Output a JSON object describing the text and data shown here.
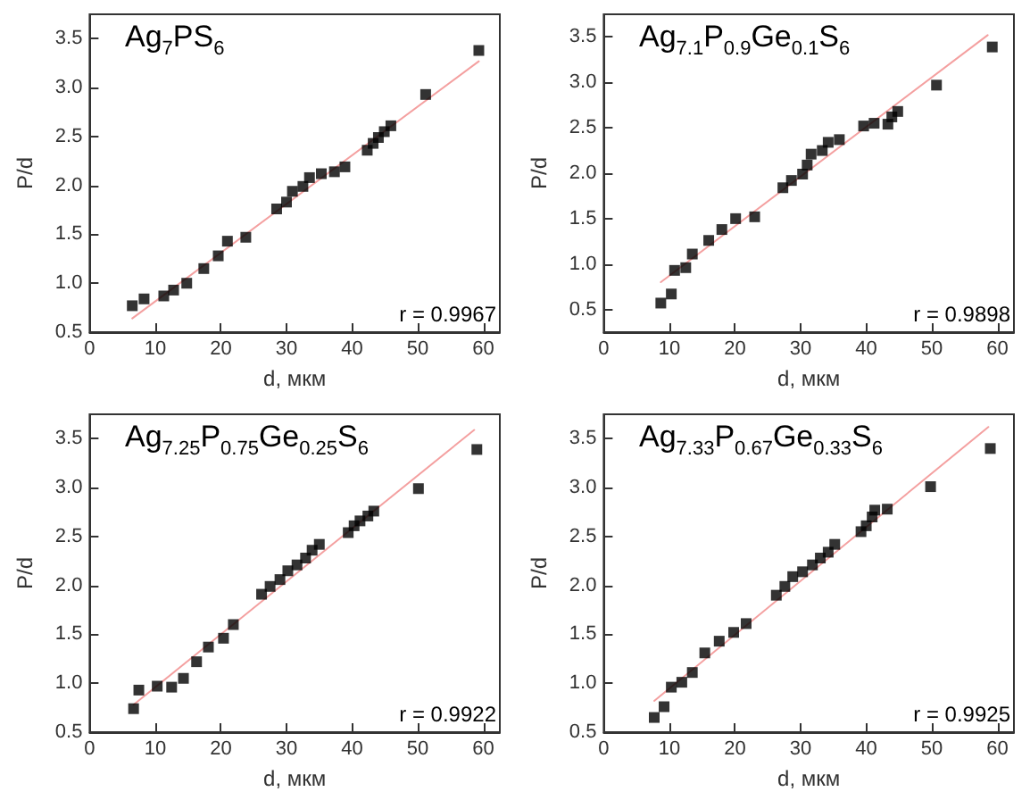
{
  "chart_data": [
    {
      "type": "scatter",
      "xlabel": "d, мкм",
      "ylabel": "P/d",
      "annotations": [
        "Ag$_{7}$PS$_{6}$",
        "r = 0.9967"
      ],
      "xlim": [
        0,
        62.5
      ],
      "ylim": [
        0.5,
        3.75
      ],
      "xticks": [
        0,
        10,
        20,
        30,
        40,
        50,
        60
      ],
      "yticks": [
        0.5,
        {
          "value": 1,
          "label": "1.0"
        },
        1.5,
        {
          "value": 2,
          "label": "2.0"
        },
        2.5,
        {
          "value": 3,
          "label": "3.0"
        },
        3.5
      ],
      "marker": "square",
      "grid": false,
      "series": [
        {
          "color": "#000000",
          "x": [
            6.5,
            8.3,
            11.3,
            12.8,
            14.8,
            17.4,
            19.6,
            21,
            23.8,
            28.5,
            30,
            30.9,
            32.5,
            33.5,
            35.3,
            37.3,
            38.9,
            42.3,
            43.2,
            44,
            44.9,
            45.9,
            51.2,
            59.3
          ],
          "values": [
            0.77,
            0.84,
            0.87,
            0.93,
            1.0,
            1.15,
            1.28,
            1.43,
            1.47,
            1.76,
            1.83,
            1.94,
            1.99,
            2.08,
            2.12,
            2.14,
            2.19,
            2.36,
            2.43,
            2.49,
            2.55,
            2.61,
            2.93,
            3.38
          ]
        },
        {
          "type": "line",
          "color": "#f4a0a0",
          "marker": "none",
          "x": [
            6.5,
            59.3
          ],
          "values": [
            0.64,
            3.27
          ]
        }
      ]
    },
    {
      "type": "scatter",
      "xlabel": "d, мкм",
      "ylabel": "P/d",
      "annotations": [
        "Ag$_{7.1}$P$_{0.9}$Ge$_{0.1}$S$_{6}$",
        "r = 0.9898"
      ],
      "xlim": [
        0,
        62.5
      ],
      "ylim": [
        0.25,
        3.75
      ],
      "xticks": [
        0,
        10,
        20,
        30,
        40,
        50,
        60
      ],
      "yticks": [
        0.5,
        {
          "value": 1,
          "label": "1.0"
        },
        1.5,
        {
          "value": 2,
          "label": "2.0"
        },
        2.5,
        {
          "value": 3,
          "label": "3.0"
        },
        3.5
      ],
      "marker": "square",
      "grid": false,
      "series": [
        {
          "color": "#000000",
          "x": [
            8.7,
            10.3,
            10.8,
            12.5,
            13.5,
            16,
            18,
            20.1,
            23,
            27.3,
            28.6,
            30.3,
            31,
            31.6,
            33.3,
            34.2,
            35.9,
            39.6,
            41.2,
            43.3,
            43.9,
            44.8,
            50.7,
            59.2
          ],
          "values": [
            0.57,
            0.67,
            0.93,
            0.96,
            1.11,
            1.26,
            1.38,
            1.5,
            1.52,
            1.84,
            1.92,
            1.99,
            2.09,
            2.21,
            2.25,
            2.34,
            2.37,
            2.52,
            2.55,
            2.54,
            2.62,
            2.68,
            2.97,
            3.39
          ]
        },
        {
          "type": "line",
          "color": "#f4a0a0",
          "marker": "none",
          "x": [
            8.7,
            58.5
          ],
          "values": [
            0.8,
            3.52
          ]
        }
      ]
    },
    {
      "type": "scatter",
      "xlabel": "d, мкм",
      "ylabel": "P/d",
      "annotations": [
        "Ag$_{7.25}$P$_{0.75}$Ge$_{0.25}$S$_{6}$",
        "r = 0.9922"
      ],
      "xlim": [
        0,
        62.5
      ],
      "ylim": [
        0.5,
        3.75
      ],
      "xticks": [
        0,
        10,
        20,
        30,
        40,
        50,
        60
      ],
      "yticks": [
        0.5,
        {
          "value": 1,
          "label": "1.0"
        },
        1.5,
        {
          "value": 2,
          "label": "2.0"
        },
        2.5,
        {
          "value": 3,
          "label": "3.0"
        },
        3.5
      ],
      "marker": "square",
      "grid": false,
      "series": [
        {
          "color": "#000000",
          "x": [
            6.7,
            7.5,
            10.3,
            12.5,
            14.3,
            16.3,
            18.1,
            20.4,
            21.9,
            26.2,
            27.5,
            29,
            30.2,
            31.6,
            32.9,
            33.9,
            35,
            39.4,
            40.3,
            41.2,
            42.4,
            43.3,
            50.1,
            59
          ],
          "values": [
            0.74,
            0.93,
            0.97,
            0.96,
            1.05,
            1.22,
            1.37,
            1.46,
            1.6,
            1.91,
            1.99,
            2.06,
            2.15,
            2.21,
            2.28,
            2.36,
            2.42,
            2.54,
            2.61,
            2.66,
            2.71,
            2.76,
            2.99,
            3.39
          ]
        },
        {
          "type": "line",
          "color": "#f4a0a0",
          "marker": "none",
          "x": [
            6.7,
            58.6
          ],
          "values": [
            0.78,
            3.59
          ]
        }
      ]
    },
    {
      "type": "scatter",
      "xlabel": "d, мкм",
      "ylabel": "P/d",
      "annotations": [
        "Ag$_{7.33}$P$_{0.67}$Ge$_{0.33}$S$_{6}$",
        "r = 0.9925"
      ],
      "xlim": [
        0,
        62.5
      ],
      "ylim": [
        0.5,
        3.75
      ],
      "xticks": [
        0,
        10,
        20,
        30,
        40,
        50,
        60
      ],
      "yticks": [
        0.5,
        {
          "value": 1,
          "label": "1.0"
        },
        1.5,
        {
          "value": 2,
          "label": "2.0"
        },
        2.5,
        {
          "value": 3,
          "label": "3.0"
        },
        3.5
      ],
      "marker": "square",
      "grid": false,
      "series": [
        {
          "color": "#000000",
          "x": [
            7.7,
            9.2,
            10.3,
            11.9,
            13.5,
            15.4,
            17.6,
            19.8,
            21.7,
            26.3,
            27.6,
            28.8,
            30.3,
            31.8,
            33,
            34.2,
            35.2,
            39.2,
            40,
            40.9,
            41.3,
            43.2,
            49.8,
            58.9
          ],
          "values": [
            0.65,
            0.76,
            0.96,
            1.01,
            1.11,
            1.31,
            1.43,
            1.52,
            1.61,
            1.9,
            1.99,
            2.09,
            2.14,
            2.21,
            2.28,
            2.34,
            2.42,
            2.55,
            2.61,
            2.7,
            2.77,
            2.78,
            3.01,
            3.4
          ]
        },
        {
          "type": "line",
          "color": "#f4a0a0",
          "marker": "none",
          "x": [
            7.7,
            58.6
          ],
          "values": [
            0.82,
            3.62
          ]
        }
      ]
    }
  ]
}
